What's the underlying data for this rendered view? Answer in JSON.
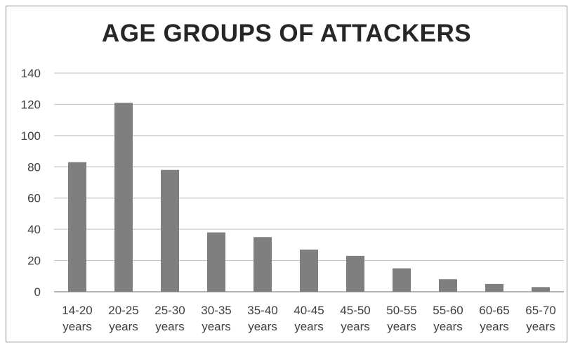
{
  "chart_data": {
    "type": "bar",
    "title": "AGE GROUPS OF ATTACKERS",
    "xlabel": "",
    "ylabel": "",
    "categories": [
      [
        "14-20",
        "years"
      ],
      [
        "20-25",
        "years"
      ],
      [
        "25-30",
        "years"
      ],
      [
        "30-35",
        "years"
      ],
      [
        "35-40",
        "years"
      ],
      [
        "40-45",
        "years"
      ],
      [
        "45-50",
        "years"
      ],
      [
        "50-55",
        "years"
      ],
      [
        "55-60",
        "years"
      ],
      [
        "60-65",
        "years"
      ],
      [
        "65-70",
        "years"
      ]
    ],
    "values": [
      83,
      121,
      78,
      38,
      35,
      27,
      23,
      15,
      8,
      5,
      3
    ],
    "ylim": [
      0,
      140
    ],
    "yticks": [
      "0",
      "20",
      "40",
      "60",
      "80",
      "100",
      "120",
      "140"
    ],
    "grid": true,
    "legend": "none",
    "colors": {
      "bar": "#7f7f7f",
      "grid": "#c8c8c8",
      "axis": "#9a9a9a"
    }
  }
}
